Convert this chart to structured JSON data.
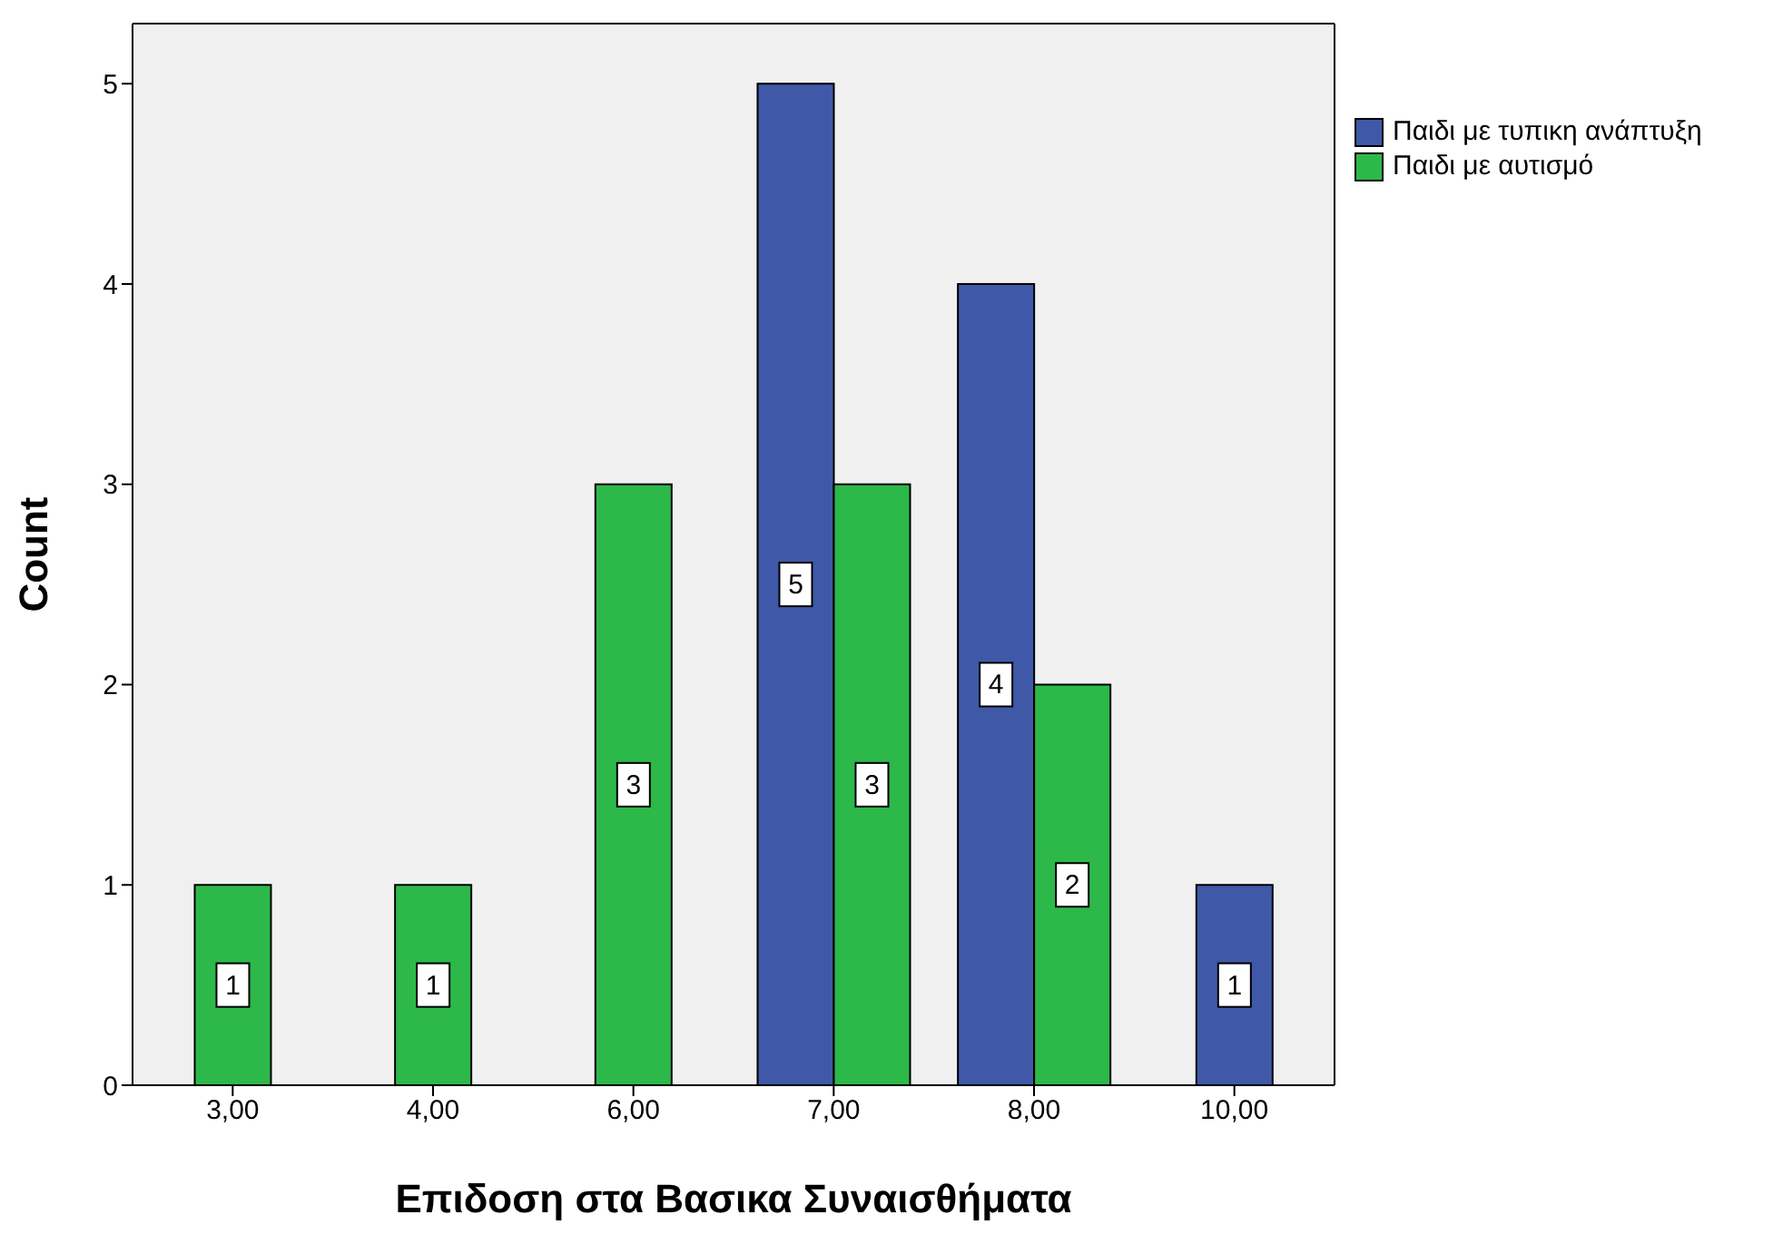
{
  "chart_data": {
    "type": "bar",
    "xlabel": "Επιδοση στα Βασικα Συναισθήματα",
    "ylabel": "Count",
    "categories": [
      "3,00",
      "4,00",
      "6,00",
      "7,00",
      "8,00",
      "10,00"
    ],
    "series": [
      {
        "name": "Παιδι με τυπικη ανάπτυξη",
        "color": "#3f58a8",
        "values": [
          null,
          null,
          null,
          5,
          4,
          1
        ]
      },
      {
        "name": "Παιδι με αυτισμό",
        "color": "#2db84a",
        "values": [
          1,
          1,
          3,
          3,
          2,
          null
        ]
      }
    ],
    "ylim": [
      0,
      5.3
    ],
    "yticks": [
      0,
      1,
      2,
      3,
      4,
      5
    ],
    "grid": false,
    "legend": "top right",
    "data_labels": true
  }
}
